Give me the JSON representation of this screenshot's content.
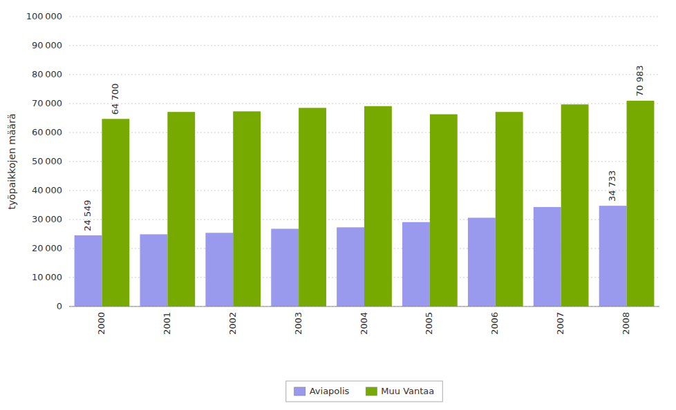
{
  "chart_data": {
    "type": "bar",
    "categories": [
      "2000",
      "2001",
      "2002",
      "2003",
      "2004",
      "2005",
      "2006",
      "2007",
      "2008"
    ],
    "series": [
      {
        "name": "Aviapolis",
        "color": "#9999EE",
        "values": [
          24549,
          24900,
          25400,
          26800,
          27300,
          29100,
          30600,
          34300,
          34733
        ],
        "value_labels": [
          "24 549",
          null,
          null,
          null,
          null,
          null,
          null,
          null,
          "34 733"
        ]
      },
      {
        "name": "Muu Vantaa",
        "color": "#77AA00",
        "values": [
          64700,
          67100,
          67300,
          68500,
          69100,
          66300,
          67100,
          69700,
          70983
        ],
        "value_labels": [
          "64 700",
          null,
          null,
          null,
          null,
          null,
          null,
          null,
          "70 983"
        ]
      }
    ],
    "y_label": "työpaikkojen määrä",
    "ylim": [
      0,
      100000
    ],
    "yticks": [
      0,
      {
        "value": 10000,
        "label": "10 000"
      },
      {
        "value": 20000,
        "label": "20 000"
      },
      {
        "value": 30000,
        "label": "30 000"
      },
      {
        "value": 40000,
        "label": "40 000"
      },
      {
        "value": 50000,
        "label": "50 000"
      },
      {
        "value": 60000,
        "label": "60 000"
      },
      {
        "value": 70000,
        "label": "70 000"
      },
      {
        "value": 80000,
        "label": "80 000"
      },
      {
        "value": 90000,
        "label": "90 000"
      },
      {
        "value": 100000,
        "label": "100 000"
      }
    ],
    "grid": true,
    "data_labels": true,
    "legend": "bottom"
  }
}
